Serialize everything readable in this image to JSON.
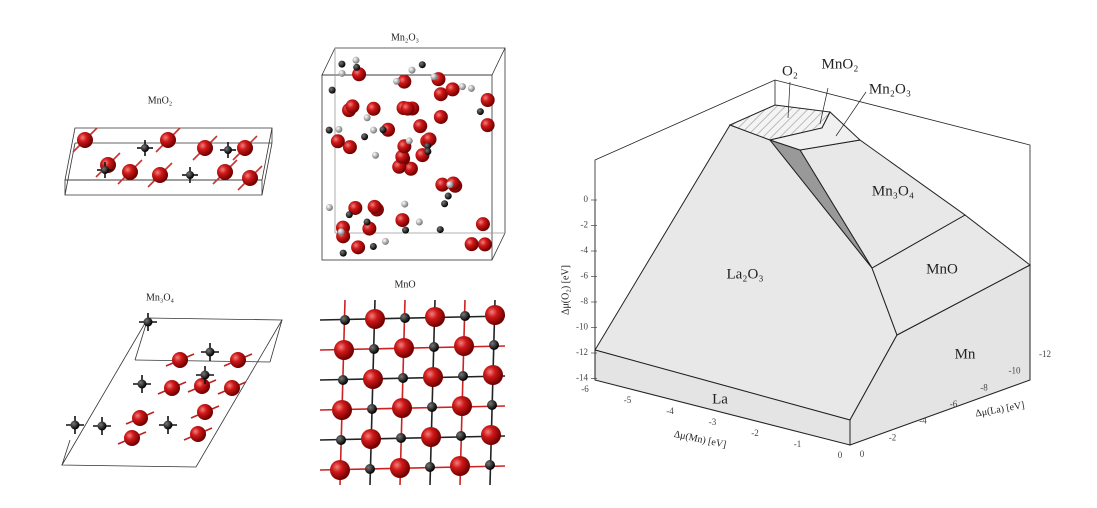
{
  "structures": [
    {
      "label": "MnO₂"
    },
    {
      "label": "Mn₂O₃"
    },
    {
      "label": "Mn₃O₄"
    },
    {
      "label": "MnO"
    }
  ],
  "phase_diagram": {
    "regions": {
      "o2": "O₂",
      "mno2": "MnO₂",
      "mn2o3": "Mn₂O₃",
      "mn3o4": "Mn₃O₄",
      "la2o3": "La₂O₃",
      "mno": "MnO",
      "mn": "Mn",
      "la": "La"
    },
    "axes": {
      "o2": {
        "label": "Δμ(O₂) [eV]",
        "ticks": [
          "0",
          "-2",
          "-4",
          "-6",
          "-8",
          "-10",
          "-12",
          "-14"
        ]
      },
      "mn": {
        "label": "Δμ(Mn) [eV]",
        "ticks": [
          "-6",
          "-5",
          "-4",
          "-3",
          "-2",
          "-1",
          "0"
        ]
      },
      "la": {
        "label": "Δμ(La) [eV]",
        "ticks": [
          "0",
          "-2",
          "-4",
          "-6",
          "-8",
          "-10",
          "-12"
        ]
      }
    }
  }
}
